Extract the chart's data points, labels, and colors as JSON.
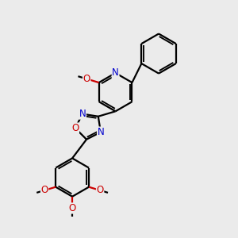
{
  "bg_color": "#ebebeb",
  "bond_color": "#000000",
  "bond_width": 1.6,
  "atom_colors": {
    "N": "#0000cc",
    "O": "#cc0000",
    "C": "#000000"
  },
  "font_size": 8.5,
  "fig_size": [
    3.0,
    3.0
  ],
  "dpi": 100,
  "xlim": [
    0,
    10
  ],
  "ylim": [
    0,
    10
  ]
}
